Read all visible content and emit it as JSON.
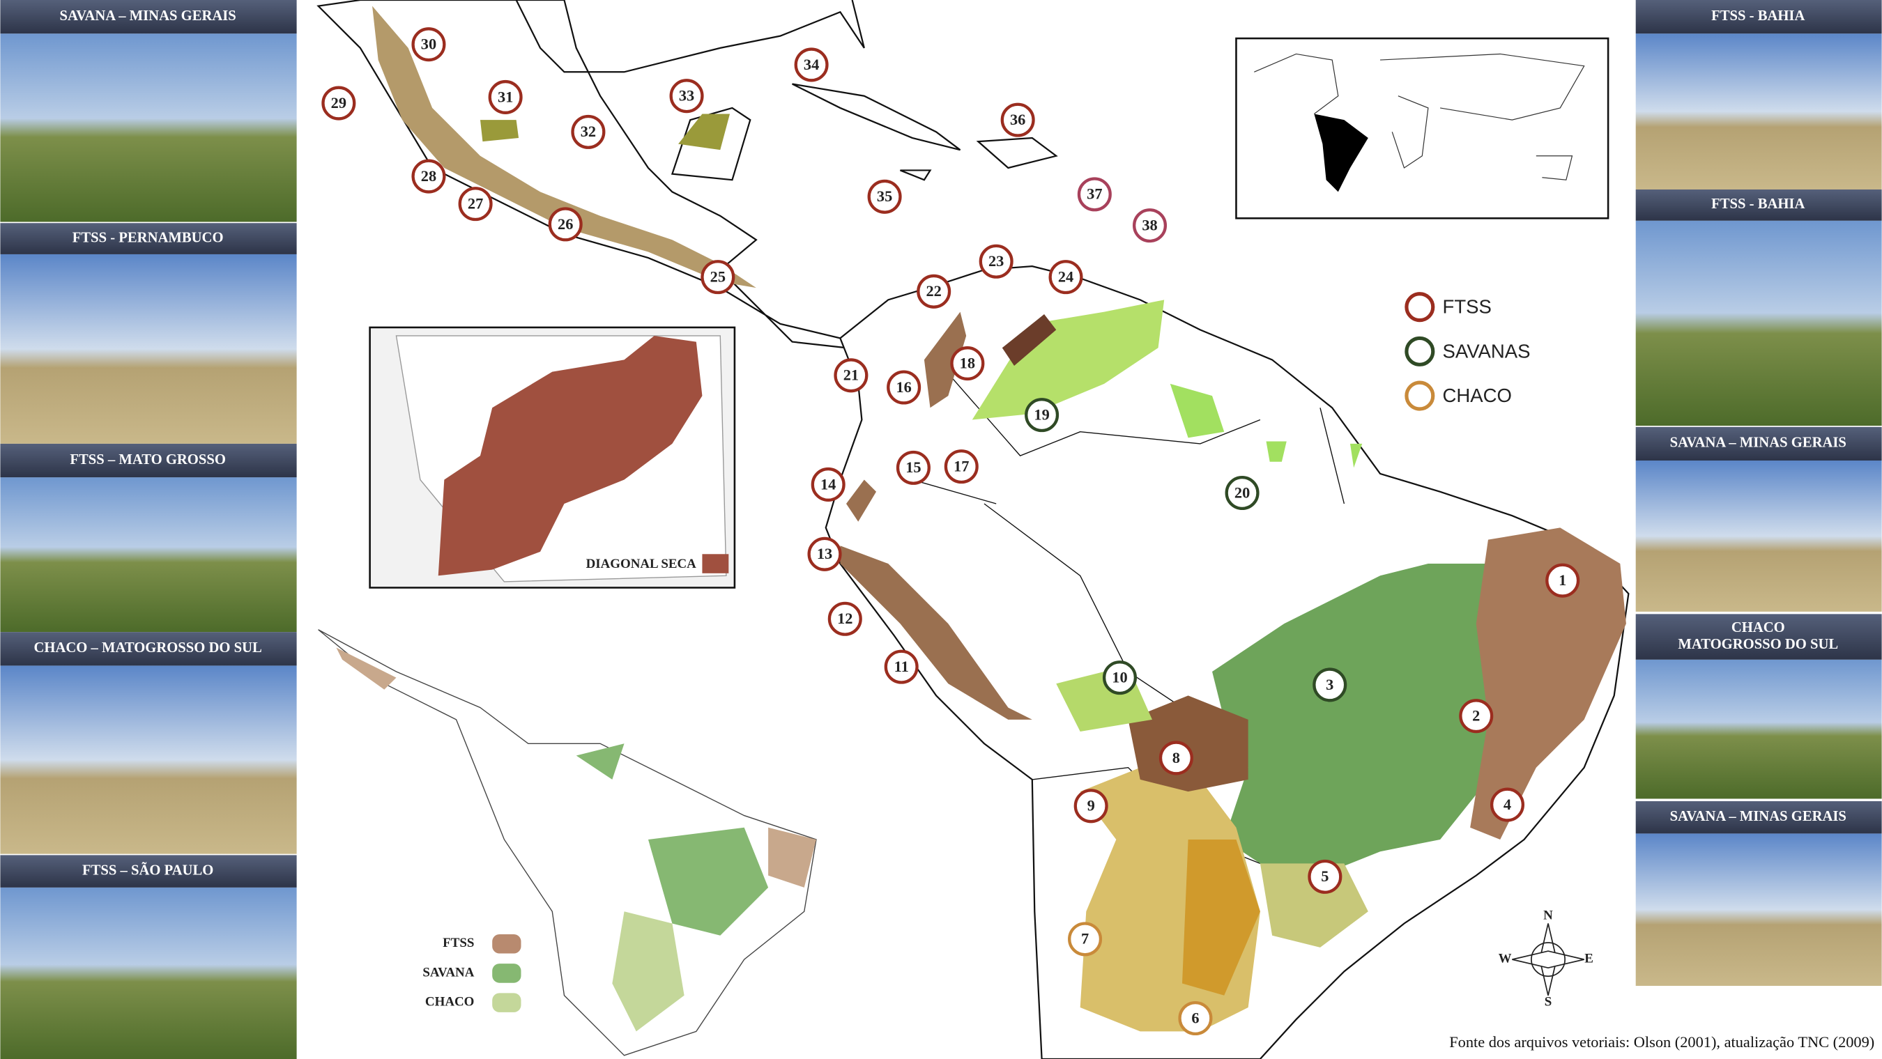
{
  "photos_left": [
    {
      "caption": "SAVANA – MINAS GERAIS"
    },
    {
      "caption": "FTSS - PERNAMBUCO"
    },
    {
      "caption": "FTSS – MATO GROSSO"
    },
    {
      "caption": "CHACO – MATOGROSSO DO SUL"
    },
    {
      "caption": "FTSS – SÃO PAULO"
    }
  ],
  "photos_right": [
    {
      "caption": [
        "FTSS - BAHIA"
      ]
    },
    {
      "caption": [
        "FTSS - BAHIA"
      ]
    },
    {
      "caption": [
        "SAVANA – MINAS GERAIS"
      ]
    },
    {
      "caption": [
        "CHACO",
        "MATOGROSSO DO SUL"
      ]
    },
    {
      "caption": [
        "SAVANA – MINAS GERAIS"
      ]
    }
  ],
  "legend": {
    "items": [
      {
        "label": "FTSS",
        "color": "#9b2d1f"
      },
      {
        "label": "SAVANAS",
        "color": "#2f4a25"
      },
      {
        "label": "CHACO",
        "color": "#c98a3a"
      }
    ]
  },
  "markers": [
    {
      "label": "1",
      "color": "#9b2d1f"
    },
    {
      "label": "2",
      "color": "#9b2d1f"
    },
    {
      "label": "3",
      "color": "#2f4a25"
    },
    {
      "label": "4",
      "color": "#9b2d1f"
    },
    {
      "label": "5",
      "color": "#9b2d1f"
    },
    {
      "label": "6",
      "color": "#c98a3a"
    },
    {
      "label": "7",
      "color": "#c98a3a"
    },
    {
      "label": "8",
      "color": "#9b2d1f"
    },
    {
      "label": "9",
      "color": "#9b2d1f"
    },
    {
      "label": "10",
      "color": "#2f4a25"
    },
    {
      "label": "11",
      "color": "#9b2d1f"
    },
    {
      "label": "12",
      "color": "#9b2d1f"
    },
    {
      "label": "13",
      "color": "#9b2d1f"
    },
    {
      "label": "14",
      "color": "#9b2d1f"
    },
    {
      "label": "15",
      "color": "#9b2d1f"
    },
    {
      "label": "16",
      "color": "#9b2d1f"
    },
    {
      "label": "17",
      "color": "#9b2d1f"
    },
    {
      "label": "18",
      "color": "#9b2d1f"
    },
    {
      "label": "19",
      "color": "#2f4a25"
    },
    {
      "label": "20",
      "color": "#2f4a25"
    },
    {
      "label": "21",
      "color": "#9b2d1f"
    },
    {
      "label": "22",
      "color": "#9b2d1f"
    },
    {
      "label": "23",
      "color": "#9b2d1f"
    },
    {
      "label": "24",
      "color": "#9b2d1f"
    },
    {
      "label": "25",
      "color": "#9b2d1f"
    },
    {
      "label": "26",
      "color": "#9b2d1f"
    },
    {
      "label": "27",
      "color": "#9b2d1f"
    },
    {
      "label": "28",
      "color": "#9b2d1f"
    },
    {
      "label": "29",
      "color": "#9b2d1f"
    },
    {
      "label": "30",
      "color": "#9b2d1f"
    },
    {
      "label": "31",
      "color": "#9b2d1f"
    },
    {
      "label": "32",
      "color": "#9b2d1f"
    },
    {
      "label": "33",
      "color": "#9b2d1f"
    },
    {
      "label": "34",
      "color": "#9b2d1f"
    },
    {
      "label": "35",
      "color": "#9b2d1f"
    },
    {
      "label": "36",
      "color": "#9b2d1f"
    },
    {
      "label": "37",
      "color": "#a8415b"
    },
    {
      "label": "38",
      "color": "#a8415b"
    }
  ],
  "diagonal_inset": {
    "label": "DIAGONAL SECA"
  },
  "mini_map_legend": {
    "items": [
      {
        "label": "FTSS",
        "color": "#b88a6f"
      },
      {
        "label": "SAVANA",
        "color": "#86b872"
      },
      {
        "label": "CHACO",
        "color": "#c4d79a"
      }
    ]
  },
  "compass": {
    "n": "N",
    "s": "S",
    "e": "E",
    "w": "W"
  },
  "source": "Fonte dos arquivos vetoriais: Olson (2001), atualização TNC (2009)"
}
